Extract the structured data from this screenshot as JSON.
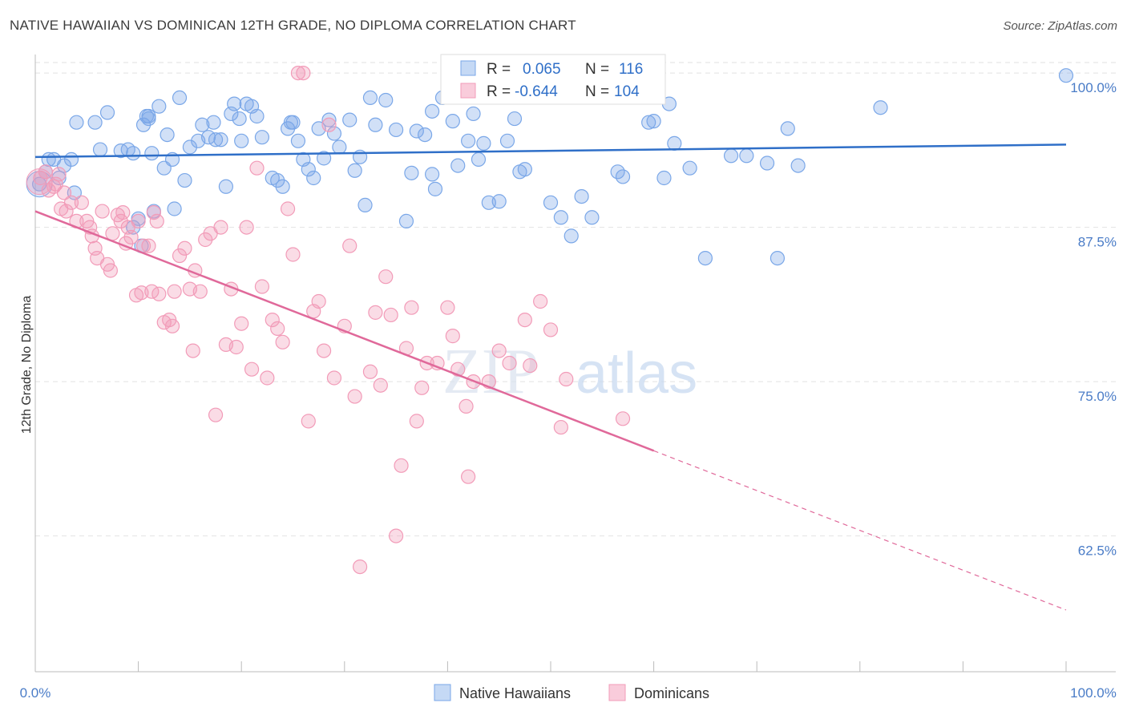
{
  "header": {
    "title": "NATIVE HAWAIIAN VS DOMINICAN 12TH GRADE, NO DIPLOMA CORRELATION CHART",
    "source": "Source: ZipAtlas.com"
  },
  "watermark": {
    "zip": "ZIP",
    "atlas": "atlas"
  },
  "stats_legend": [
    {
      "r_label": "R =",
      "r_value": "0.065",
      "n_label": "N =",
      "n_value": "116",
      "color": "#7aa7e8"
    },
    {
      "r_label": "R =",
      "r_value": "-0.644",
      "n_label": "N =",
      "n_value": "104",
      "color": "#f29bb8"
    }
  ],
  "bottom_legend": [
    {
      "label": "Native Hawaiians",
      "color": "#7aa7e8"
    },
    {
      "label": "Dominicans",
      "color": "#f29bb8"
    }
  ],
  "chart_data": {
    "type": "scatter",
    "title": "NATIVE HAWAIIAN VS DOMINICAN 12TH GRADE, NO DIPLOMA CORRELATION CHART",
    "ylabel": "12th Grade, No Diploma",
    "xlabel": "",
    "xlim": [
      0,
      100
    ],
    "ylim": [
      51.5,
      101.5
    ],
    "x_tick_labels": [
      "0.0%",
      "100.0%"
    ],
    "y_ticks": [
      {
        "value": 100,
        "label": "100.0%"
      },
      {
        "value": 87.5,
        "label": "87.5%"
      },
      {
        "value": 75,
        "label": "75.0%"
      },
      {
        "value": 62.5,
        "label": "62.5%"
      }
    ],
    "grid": "horizontal dashed",
    "series": [
      {
        "name": "Native Hawaiians",
        "color": "#7aa7e8",
        "line_color": "#2f6fc8",
        "trend": {
          "x": [
            0,
            100
          ],
          "y": [
            93.2,
            94.2
          ]
        },
        "points": [
          [
            0.4,
            91
          ],
          [
            1,
            92
          ],
          [
            1.3,
            93
          ],
          [
            1.8,
            93
          ],
          [
            2.3,
            91.5
          ],
          [
            2.8,
            92.5
          ],
          [
            3.5,
            93
          ],
          [
            3.8,
            90.3
          ],
          [
            4,
            96
          ],
          [
            5.8,
            96
          ],
          [
            6.3,
            93.8
          ],
          [
            7,
            96.8
          ],
          [
            8.3,
            93.7
          ],
          [
            9,
            93.8
          ],
          [
            9.5,
            93.5
          ],
          [
            9.5,
            87.5
          ],
          [
            10,
            88.2
          ],
          [
            10.3,
            86
          ],
          [
            10.5,
            95.8
          ],
          [
            10.8,
            96.5
          ],
          [
            11,
            96.5
          ],
          [
            11,
            96.3
          ],
          [
            11.3,
            93.5
          ],
          [
            11.5,
            88.8
          ],
          [
            12,
            97.3
          ],
          [
            12.5,
            92.3
          ],
          [
            12.8,
            95
          ],
          [
            13.3,
            93
          ],
          [
            13.5,
            89
          ],
          [
            14,
            98
          ],
          [
            14.5,
            91.3
          ],
          [
            15,
            94
          ],
          [
            15.8,
            94.5
          ],
          [
            16.2,
            95.8
          ],
          [
            16.8,
            94.8
          ],
          [
            17.3,
            96
          ],
          [
            17.5,
            94.6
          ],
          [
            18,
            94.6
          ],
          [
            18.5,
            90.8
          ],
          [
            19,
            96.7
          ],
          [
            19.3,
            97.5
          ],
          [
            19.8,
            96.3
          ],
          [
            20,
            94.5
          ],
          [
            20.5,
            97.5
          ],
          [
            21,
            97.3
          ],
          [
            21.5,
            96.5
          ],
          [
            22,
            94.8
          ],
          [
            23,
            91.5
          ],
          [
            23.5,
            91.3
          ],
          [
            24,
            90.8
          ],
          [
            24.5,
            95.5
          ],
          [
            24.8,
            96
          ],
          [
            25,
            96
          ],
          [
            25.5,
            94.5
          ],
          [
            26,
            93
          ],
          [
            26.5,
            92.2
          ],
          [
            27,
            91.5
          ],
          [
            27.5,
            95.5
          ],
          [
            28,
            93.1
          ],
          [
            28.5,
            96.2
          ],
          [
            29,
            95.1
          ],
          [
            29.5,
            94
          ],
          [
            30.5,
            96.2
          ],
          [
            31,
            92.1
          ],
          [
            31.5,
            93.2
          ],
          [
            32,
            89.3
          ],
          [
            32.5,
            98
          ],
          [
            33,
            95.8
          ],
          [
            34,
            97.8
          ],
          [
            35,
            95.4
          ],
          [
            36,
            88
          ],
          [
            36.5,
            91.9
          ],
          [
            37,
            95.3
          ],
          [
            37.8,
            95
          ],
          [
            38.5,
            91.8
          ],
          [
            38.8,
            90.6
          ],
          [
            38.5,
            96.9
          ],
          [
            39.5,
            98
          ],
          [
            40.5,
            96.1
          ],
          [
            41,
            92.5
          ],
          [
            41.5,
            99.7
          ],
          [
            42,
            94.5
          ],
          [
            42.5,
            96.7
          ],
          [
            43,
            93
          ],
          [
            43.5,
            94.3
          ],
          [
            44,
            89.5
          ],
          [
            45,
            89.6
          ],
          [
            45.8,
            94.5
          ],
          [
            46.5,
            96.3
          ],
          [
            47,
            92
          ],
          [
            47.5,
            92.2
          ],
          [
            49,
            99.7
          ],
          [
            50,
            89.5
          ],
          [
            51,
            88.3
          ],
          [
            52,
            86.8
          ],
          [
            53,
            90
          ],
          [
            54,
            88.3
          ],
          [
            55,
            99.7
          ],
          [
            56,
            99.7
          ],
          [
            56.5,
            92
          ],
          [
            57,
            91.6
          ],
          [
            57.5,
            99.7
          ],
          [
            58,
            99.7
          ],
          [
            59.5,
            96
          ],
          [
            60,
            96.1
          ],
          [
            61,
            91.5
          ],
          [
            61.5,
            97.5
          ],
          [
            62,
            94.3
          ],
          [
            63.5,
            92.3
          ],
          [
            65,
            85
          ],
          [
            67.5,
            93.3
          ],
          [
            69,
            93.3
          ],
          [
            71,
            92.7
          ],
          [
            72,
            85
          ],
          [
            73,
            95.5
          ],
          [
            74,
            92.5
          ],
          [
            82,
            97.2
          ],
          [
            100,
            99.8
          ]
        ]
      },
      {
        "name": "Dominicans",
        "color": "#f29bb8",
        "line_color": "#e0699a",
        "trend": {
          "x": [
            0,
            60
          ],
          "y": [
            88.8,
            69.4
          ]
        },
        "trend_extension": {
          "x": [
            60,
            100
          ],
          "y": [
            69.4,
            56.5
          ]
        },
        "points": [
          [
            0.5,
            91.5
          ],
          [
            1,
            92
          ],
          [
            1.3,
            90.5
          ],
          [
            1.8,
            90.8
          ],
          [
            2,
            91
          ],
          [
            2.3,
            91.8
          ],
          [
            2.5,
            89
          ],
          [
            2.8,
            90.3
          ],
          [
            3,
            88.8
          ],
          [
            3.5,
            89.5
          ],
          [
            4,
            88
          ],
          [
            4.5,
            89.5
          ],
          [
            5,
            88
          ],
          [
            5.3,
            87.5
          ],
          [
            5.5,
            86.8
          ],
          [
            5.8,
            85.8
          ],
          [
            6,
            85
          ],
          [
            6.5,
            88.8
          ],
          [
            7,
            84.5
          ],
          [
            7.3,
            84
          ],
          [
            7.5,
            87
          ],
          [
            8,
            88.5
          ],
          [
            8.3,
            88
          ],
          [
            8.5,
            88.7
          ],
          [
            8.8,
            86.2
          ],
          [
            9,
            87.5
          ],
          [
            9.3,
            86.7
          ],
          [
            9.8,
            82
          ],
          [
            10,
            88
          ],
          [
            10.3,
            82.2
          ],
          [
            10.5,
            86
          ],
          [
            11,
            86
          ],
          [
            11.3,
            82.3
          ],
          [
            11.5,
            88.7
          ],
          [
            11.8,
            88
          ],
          [
            12,
            82.1
          ],
          [
            12.5,
            79.8
          ],
          [
            13,
            80
          ],
          [
            13.3,
            79.5
          ],
          [
            13.5,
            82.3
          ],
          [
            14,
            85.2
          ],
          [
            14.5,
            85.8
          ],
          [
            15,
            82.5
          ],
          [
            15.3,
            77.5
          ],
          [
            15.5,
            84
          ],
          [
            16,
            82.3
          ],
          [
            16.5,
            86.5
          ],
          [
            17,
            87
          ],
          [
            17.5,
            72.3
          ],
          [
            18,
            87.5
          ],
          [
            18.5,
            78
          ],
          [
            19,
            82.5
          ],
          [
            19.5,
            77.8
          ],
          [
            20,
            79.7
          ],
          [
            20.5,
            87.5
          ],
          [
            21,
            76
          ],
          [
            21.5,
            92.3
          ],
          [
            22,
            82.7
          ],
          [
            22.5,
            75.3
          ],
          [
            23,
            80
          ],
          [
            23.5,
            79.3
          ],
          [
            24,
            78.2
          ],
          [
            24.5,
            89
          ],
          [
            25,
            85.3
          ],
          [
            25.5,
            100
          ],
          [
            26,
            100
          ],
          [
            26.5,
            71.8
          ],
          [
            27,
            80.7
          ],
          [
            27.5,
            81.5
          ],
          [
            28,
            77.5
          ],
          [
            28.5,
            95.8
          ],
          [
            29,
            75.3
          ],
          [
            30,
            79.5
          ],
          [
            30.5,
            86
          ],
          [
            31,
            73.8
          ],
          [
            31.5,
            60
          ],
          [
            32.5,
            75.8
          ],
          [
            33,
            80.6
          ],
          [
            33.5,
            74.7
          ],
          [
            34,
            83.5
          ],
          [
            34.5,
            80.4
          ],
          [
            35,
            62.5
          ],
          [
            35.5,
            68.2
          ],
          [
            36,
            77.7
          ],
          [
            36.5,
            81
          ],
          [
            37,
            71.8
          ],
          [
            37.5,
            74.5
          ],
          [
            38,
            76.5
          ],
          [
            39,
            76.5
          ],
          [
            40,
            81
          ],
          [
            40.5,
            78.7
          ],
          [
            41,
            76
          ],
          [
            41.8,
            73
          ],
          [
            42,
            67.3
          ],
          [
            42.5,
            75
          ],
          [
            44,
            75
          ],
          [
            45,
            77.5
          ],
          [
            46,
            76.5
          ],
          [
            47.5,
            80
          ],
          [
            48,
            76.3
          ],
          [
            49,
            81.5
          ],
          [
            50,
            79.2
          ],
          [
            51,
            71.3
          ],
          [
            51.5,
            75.2
          ],
          [
            57,
            72
          ]
        ]
      }
    ]
  }
}
